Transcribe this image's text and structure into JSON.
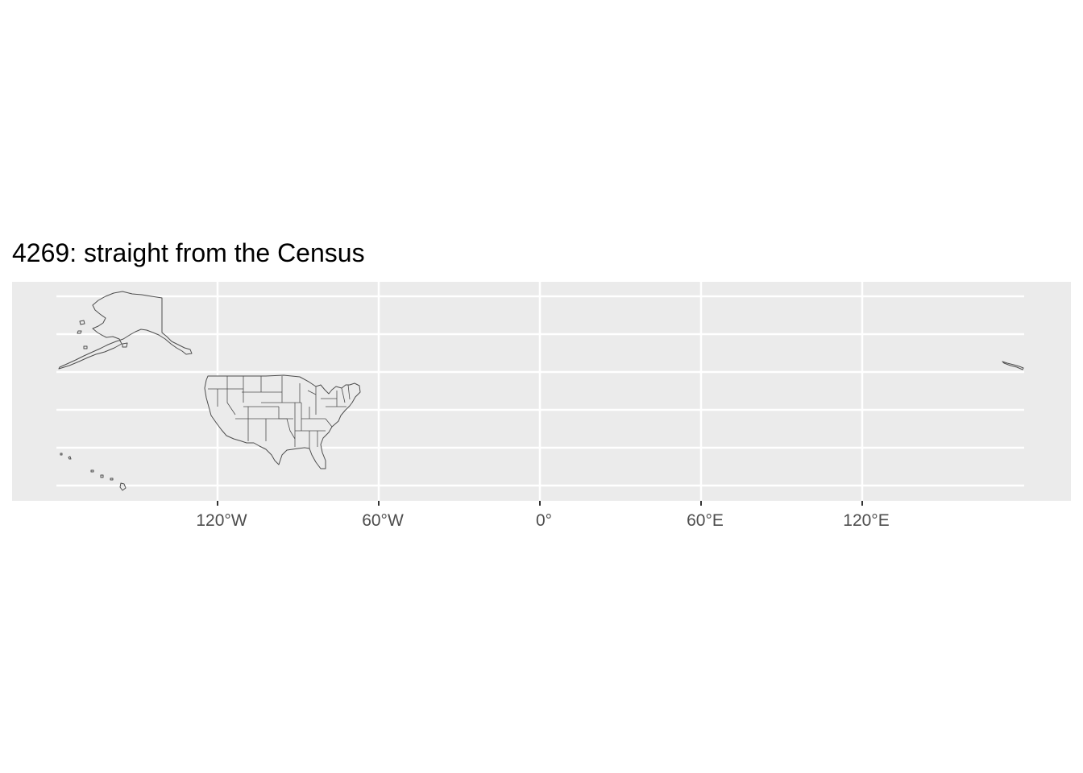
{
  "title": "4269: straight from the Census",
  "x_axis": {
    "ticks": [
      {
        "value": -120,
        "label": "120°W"
      },
      {
        "value": -60,
        "label": "60°W"
      },
      {
        "value": 0,
        "label": "0°"
      },
      {
        "value": 60,
        "label": "60°E"
      },
      {
        "value": 120,
        "label": "120°E"
      }
    ]
  },
  "colors": {
    "panel_background": "#ebebeb",
    "grid": "#ffffff",
    "land_fill": "#ebebeb",
    "land_outline": "#4d4d4d",
    "tick_label": "#4d4d4d",
    "title": "#000000"
  },
  "grid": true,
  "y_axis_labels_shown": false
}
